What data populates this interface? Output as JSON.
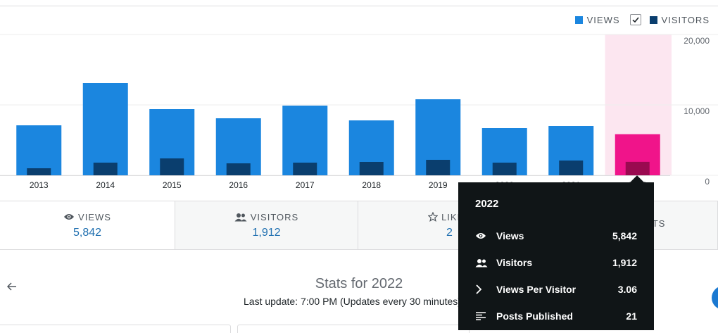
{
  "legend": {
    "views_label": "VIEWS",
    "visitors_label": "VISITORS",
    "visitors_checked": true
  },
  "colors": {
    "views": "#1b86df",
    "visitors": "#0a3e6e",
    "highlight_bar": "#f0148a",
    "highlight_visitors": "#9a0a50",
    "highlight_band": "#fce6f0",
    "link": "#2271b1"
  },
  "chart_data": {
    "type": "bar",
    "categories": [
      "2013",
      "2014",
      "2015",
      "2016",
      "2017",
      "2018",
      "2019",
      "2020",
      "2021",
      "2022"
    ],
    "series": [
      {
        "name": "Views",
        "values": [
          7100,
          13100,
          9400,
          8100,
          9900,
          7800,
          10800,
          6700,
          7000,
          5842
        ]
      },
      {
        "name": "Visitors",
        "values": [
          1000,
          1800,
          2400,
          1700,
          1800,
          1900,
          2200,
          1800,
          2100,
          1912
        ]
      }
    ],
    "ylim": [
      0,
      20000
    ],
    "yticks": [
      "20,000",
      "10,000",
      "0"
    ],
    "ytick_values": [
      20000,
      10000,
      0
    ],
    "highlighted_index": 9,
    "grid": true,
    "legend_position": "top-right"
  },
  "tabs": [
    {
      "label": "VIEWS",
      "value": "5,842",
      "icon": "eye-icon",
      "active": true
    },
    {
      "label": "VISITORS",
      "value": "1,912",
      "icon": "people-icon",
      "active": false
    },
    {
      "label": "LIKES",
      "value": "2",
      "icon": "star-icon",
      "active": false
    },
    {
      "label": "COMMENTS",
      "value": "",
      "icon": "comment-icon",
      "active": false
    }
  ],
  "tooltip": {
    "title": "2022",
    "rows": [
      {
        "label": "Views",
        "value": "5,842",
        "icon": "eye-icon"
      },
      {
        "label": "Visitors",
        "value": "1,912",
        "icon": "people-icon"
      },
      {
        "label": "Views Per Visitor",
        "value": "3.06",
        "icon": "chevron-right-icon"
      },
      {
        "label": "Posts Published",
        "value": "21",
        "icon": "list-icon"
      }
    ]
  },
  "stats": {
    "title": "Stats for 2022",
    "last_update": "Last update: 7:00 PM (Updates every 30 minutes)"
  }
}
